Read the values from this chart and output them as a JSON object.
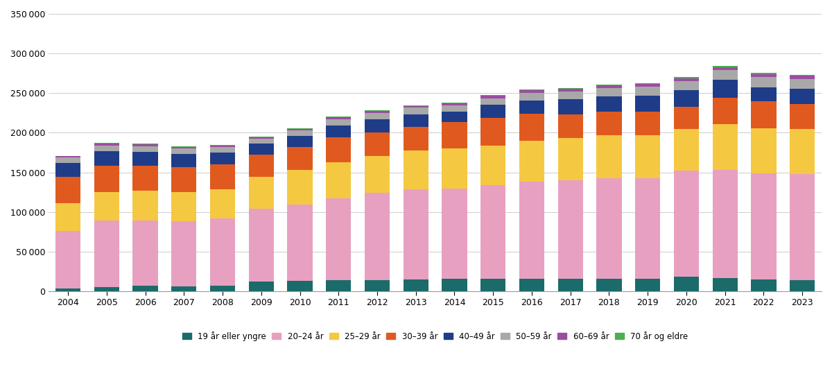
{
  "years": [
    2004,
    2005,
    2006,
    2007,
    2008,
    2009,
    2010,
    2011,
    2012,
    2013,
    2014,
    2015,
    2016,
    2017,
    2018,
    2019,
    2020,
    2021,
    2022,
    2023
  ],
  "series": {
    "19 år eller yngre": [
      3500,
      5500,
      6500,
      6000,
      7000,
      12000,
      13000,
      13500,
      14000,
      14500,
      15500,
      16000,
      16000,
      16000,
      16000,
      16000,
      18000,
      16500,
      14500,
      13500
    ],
    "20–24 år": [
      73000,
      84000,
      83000,
      82000,
      85000,
      92000,
      96000,
      104000,
      110000,
      114000,
      114000,
      118000,
      122000,
      124000,
      127000,
      127000,
      134000,
      137000,
      134000,
      134000
    ],
    "25–29 år": [
      35000,
      36000,
      37000,
      37000,
      37000,
      40000,
      44000,
      45000,
      47000,
      49000,
      51000,
      50000,
      52000,
      53000,
      54000,
      54000,
      53000,
      57000,
      57000,
      57000
    ],
    "30–39 år": [
      33000,
      33000,
      32000,
      32000,
      31000,
      28000,
      29000,
      32000,
      29000,
      30000,
      33000,
      35000,
      34000,
      30000,
      30000,
      30000,
      28000,
      34000,
      34000,
      32000
    ],
    "40–49 år": [
      17000,
      18000,
      17000,
      16000,
      15000,
      14000,
      14000,
      15000,
      17000,
      16000,
      13000,
      16000,
      17000,
      19000,
      19000,
      20000,
      21000,
      22000,
      18000,
      19000
    ],
    "50–59 år": [
      7000,
      7500,
      7500,
      7000,
      7000,
      6500,
      7000,
      7500,
      8000,
      8000,
      8000,
      8500,
      9500,
      10000,
      10500,
      11000,
      11500,
      12500,
      12500,
      12500
    ],
    "60–69 år": [
      2000,
      2500,
      2500,
      2000,
      2000,
      2000,
      2000,
      2500,
      2500,
      2500,
      2500,
      3000,
      3000,
      3500,
      3500,
      3500,
      3500,
      4000,
      4000,
      4000
    ],
    "70 år og eldre": [
      500,
      500,
      500,
      500,
      500,
      500,
      500,
      800,
      800,
      800,
      1000,
      1000,
      1000,
      1000,
      1000,
      1000,
      1000,
      1200,
      1200,
      1200
    ]
  },
  "colors": {
    "19 år eller yngre": "#1B6B6B",
    "20–24 år": "#E8A0C0",
    "25–29 år": "#F5C842",
    "30–39 år": "#E05A20",
    "40–49 år": "#1F3C88",
    "50–59 år": "#A8A8A8",
    "60–69 år": "#9B4EA0",
    "70 år og eldre": "#4CAF50"
  },
  "ylim": [
    0,
    350000
  ],
  "yticks": [
    0,
    50000,
    100000,
    150000,
    200000,
    250000,
    300000,
    350000
  ],
  "background_color": "#ffffff"
}
